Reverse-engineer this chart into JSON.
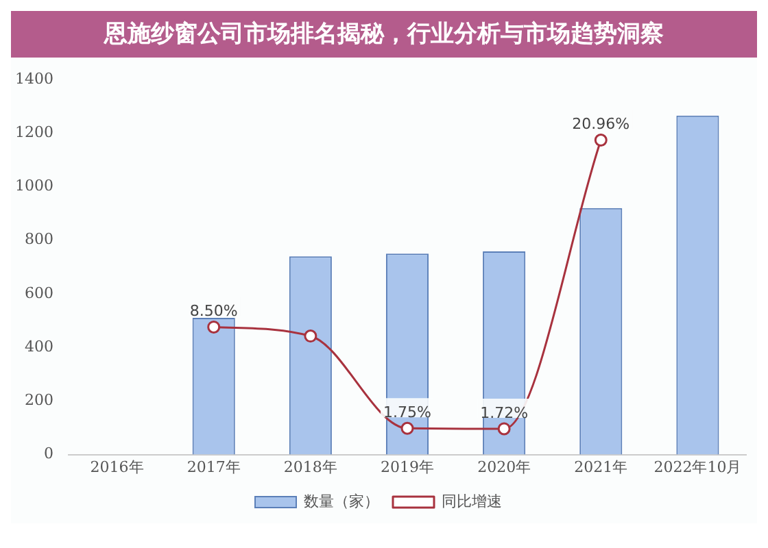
{
  "chart_data": {
    "type": "bar",
    "title": "恩施纱窗公司市场排名揭秘，行业分析与市场趋势洞察",
    "categories": [
      "2016年",
      "2017年",
      "2018年",
      "2019年",
      "2020年",
      "2021年",
      "2022年10月"
    ],
    "series": [
      {
        "name": "数量（家）",
        "color": "#a9c4ec",
        "values": [
          null,
          510,
          740,
          750,
          758,
          920,
          1265
        ]
      },
      {
        "name": "同比增速",
        "type": "line",
        "axis": "y2",
        "color": "#a8323e",
        "values": [
          null,
          8.5,
          7.9,
          1.75,
          1.72,
          20.96,
          null
        ],
        "value_labels": [
          null,
          "8.50%",
          null,
          "1.75%",
          "1.72%",
          "20.96%",
          null
        ]
      }
    ],
    "ylim": [
      0,
      1400
    ],
    "yticks": [
      0,
      200,
      400,
      600,
      800,
      1000,
      1200,
      1400
    ],
    "grid": false,
    "legend": "bottom",
    "marker": "circle",
    "line_style": "solid"
  }
}
